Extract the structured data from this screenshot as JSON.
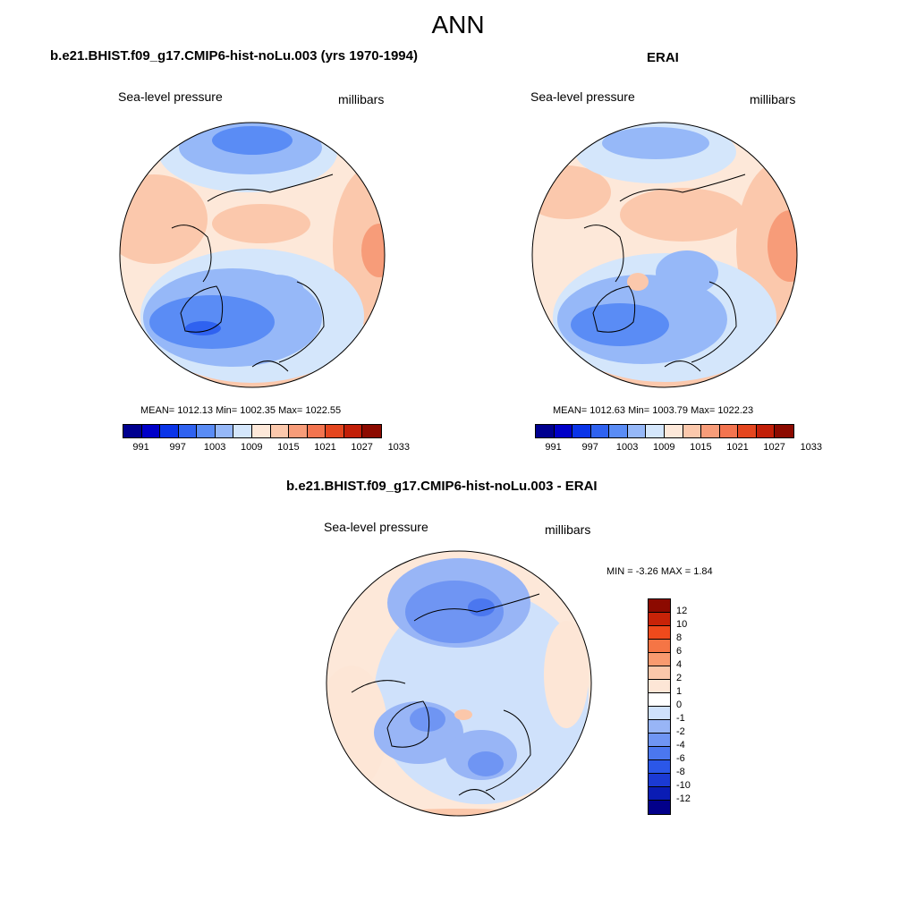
{
  "main_title": "ANN",
  "colorbar_colors": [
    "#00008f",
    "#0000c8",
    "#0a34e8",
    "#2f62f0",
    "#5a8cf5",
    "#96b8f8",
    "#d4e6fb",
    "#fde8d9",
    "#fbc8ac",
    "#f79c79",
    "#f3744f",
    "#e4461f",
    "#c21f08",
    "#8c0a00"
  ],
  "diff_colors": [
    "#02008a",
    "#0a1cb4",
    "#1b3ad4",
    "#2b57e8",
    "#4b77ef",
    "#6f95f3",
    "#98b5f6",
    "#cfe1fb",
    "#ffffff",
    "#fde6d6",
    "#fbc7aa",
    "#f99a6f",
    "#f57545",
    "#ef4a1c",
    "#c82308",
    "#8c0a00"
  ],
  "panels": {
    "model": {
      "title": "b.e21.BHIST.f09_g17.CMIP6-hist-noLu.003 (yrs 1970-1994)",
      "variable": "Sea-level pressure",
      "units": "millibars",
      "stats": "MEAN= 1012.13  Min= 1002.35  Max= 1022.55",
      "ticks": [
        "991",
        "997",
        "1003",
        "1009",
        "1015",
        "1021",
        "1027",
        "1033"
      ]
    },
    "obs": {
      "title": "ERAI",
      "variable": "Sea-level pressure",
      "units": "millibars",
      "stats": "MEAN= 1012.63  Min= 1003.79  Max= 1022.23",
      "ticks": [
        "991",
        "997",
        "1003",
        "1009",
        "1015",
        "1021",
        "1027",
        "1033"
      ]
    },
    "diff": {
      "title": "b.e21.BHIST.f09_g17.CMIP6-hist-noLu.003 - ERAI",
      "variable": "Sea-level pressure",
      "units": "millibars",
      "stats": "MIN =  -3.26 MAX =   1.84",
      "ticks": [
        "12",
        "10",
        "8",
        "6",
        "4",
        "2",
        "1",
        "0",
        "-1",
        "-2",
        "-4",
        "-6",
        "-8",
        "-10",
        "-12"
      ]
    }
  }
}
